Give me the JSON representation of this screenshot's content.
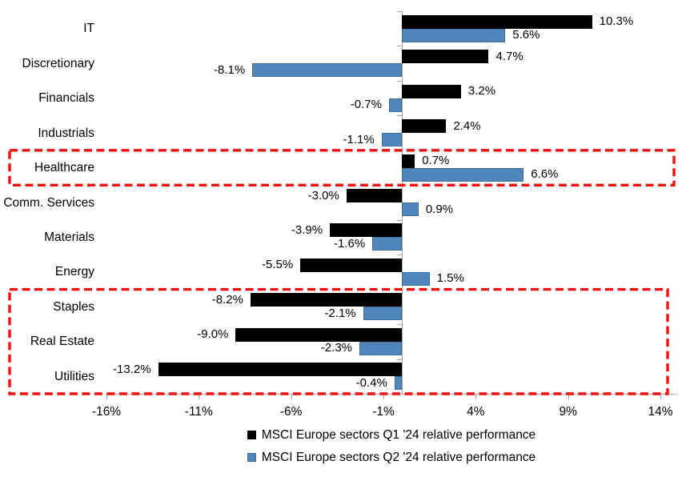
{
  "chart_data": {
    "type": "bar",
    "orientation": "horizontal",
    "title": "",
    "categories": [
      "IT",
      "Discretionary",
      "Financials",
      "Industrials",
      "Healthcare",
      "Comm. Services",
      "Materials",
      "Energy",
      "Staples",
      "Real Estate",
      "Utilities"
    ],
    "series": [
      {
        "name": "MSCI Europe sectors Q1 '24 relative performance",
        "color": "#000000",
        "values": [
          10.3,
          4.7,
          3.2,
          2.4,
          0.7,
          -3.0,
          -3.9,
          -5.5,
          -8.2,
          -9.0,
          -13.2
        ],
        "labels": [
          "10.3%",
          "4.7%",
          "3.2%",
          "2.4%",
          "0.7%",
          "-3.0%",
          "-3.9%",
          "-5.5%",
          "-8.2%",
          "-9.0%",
          "-13.2%"
        ]
      },
      {
        "name": "MSCI Europe sectors Q2 '24 relative performance",
        "color": "#4F86BC",
        "border_color": "#3E6C9B",
        "values": [
          5.6,
          -8.1,
          -0.7,
          -1.1,
          6.6,
          0.9,
          -1.6,
          1.5,
          -2.1,
          -2.3,
          -0.4
        ],
        "labels": [
          "5.6%",
          "-8.1%",
          "-0.7%",
          "-1.1%",
          "6.6%",
          "0.9%",
          "-1.6%",
          "1.5%",
          "-2.1%",
          "-2.3%",
          "-0.4%"
        ]
      }
    ],
    "x_axis": {
      "min": -16,
      "max": 14,
      "unit": "%",
      "tick_values": [
        -16,
        -11,
        -6,
        -1,
        4,
        9,
        14
      ],
      "tick_labels": [
        "-16%",
        "-11%",
        "-6%",
        "-1%",
        "4%",
        "9%",
        "14%"
      ]
    },
    "legend_position": "bottom",
    "grid": false,
    "data_labels": true,
    "highlights": [
      {
        "categories": [
          "Healthcare"
        ],
        "style": "red-dashed-box"
      },
      {
        "categories": [
          "Staples",
          "Real Estate",
          "Utilities"
        ],
        "style": "red-dashed-box"
      }
    ],
    "colors": {
      "axis": "#A6A6A6",
      "label_text": "#000000",
      "highlight": "#EE1111"
    }
  }
}
